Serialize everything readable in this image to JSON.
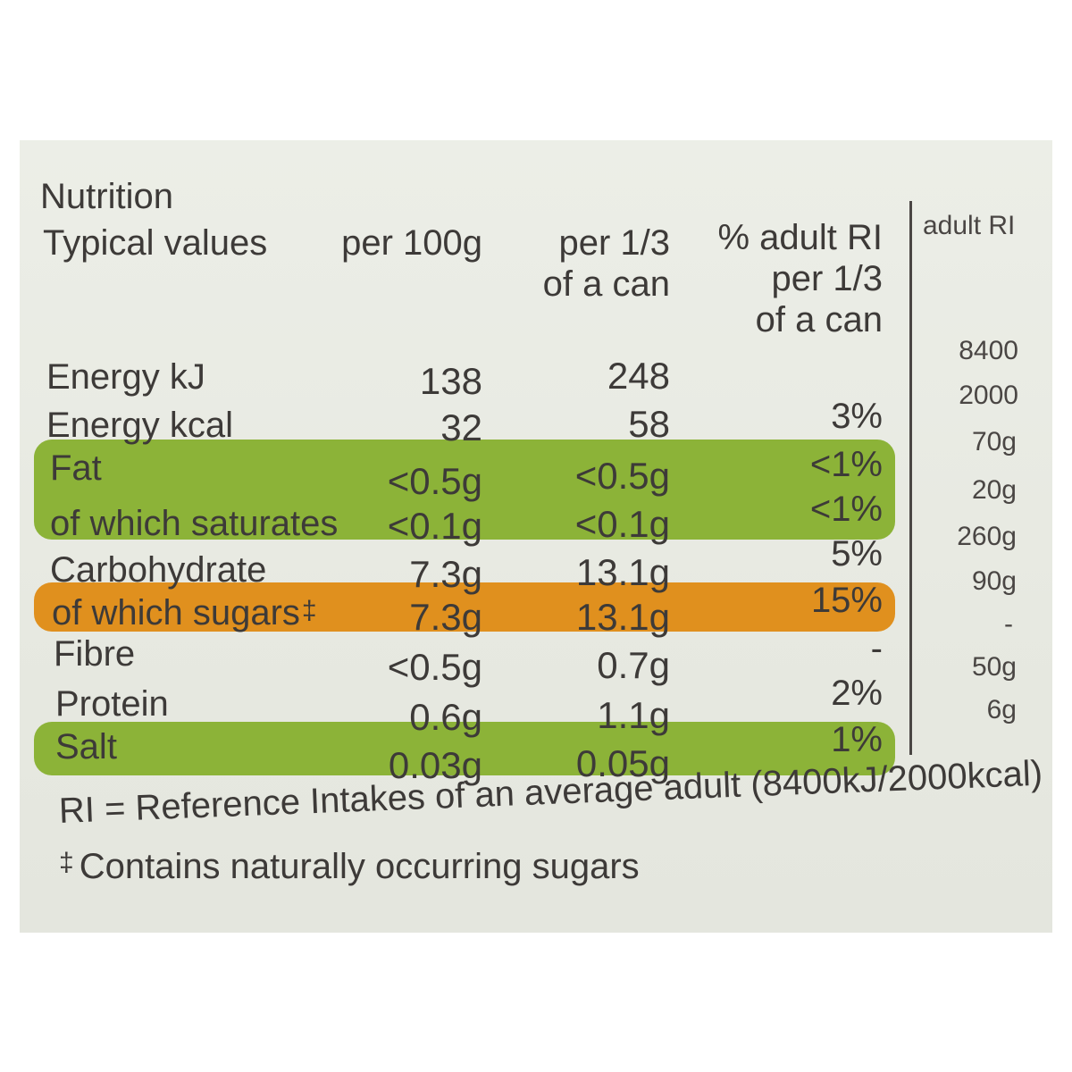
{
  "header": {
    "title": "Nutrition",
    "typical_values": "Typical values",
    "per_100g": "per 100g",
    "per_third_line1": "per 1/3",
    "per_third_line2": "of a can",
    "pct_ri_line1": "% adult RI",
    "pct_ri_line2": "per 1/3",
    "pct_ri_line3": "of a can",
    "adult_ri": "adult RI"
  },
  "rows": [
    {
      "name": "Energy kJ",
      "per_100g": "138",
      "per_third": "248",
      "pct_ri": "",
      "adult_ri": "8400",
      "highlight": "none"
    },
    {
      "name": "Energy kcal",
      "per_100g": "32",
      "per_third": "58",
      "pct_ri": "3%",
      "adult_ri": "2000",
      "highlight": "none"
    },
    {
      "name": "Fat",
      "per_100g": "<0.5g",
      "per_third": "<0.5g",
      "pct_ri": "<1%",
      "adult_ri": "70g",
      "highlight": "green"
    },
    {
      "name": "of which saturates",
      "per_100g": "<0.1g",
      "per_third": "<0.1g",
      "pct_ri": "<1%",
      "adult_ri": "20g",
      "highlight": "green"
    },
    {
      "name": "Carbohydrate",
      "per_100g": "7.3g",
      "per_third": "13.1g",
      "pct_ri": "5%",
      "adult_ri": "260g",
      "highlight": "none"
    },
    {
      "name": "of which sugars",
      "symbol": "‡",
      "per_100g": "7.3g",
      "per_third": "13.1g",
      "pct_ri": "15%",
      "adult_ri": "90g",
      "highlight": "orange"
    },
    {
      "name": "Fibre",
      "per_100g": "<0.5g",
      "per_third": "0.7g",
      "pct_ri": "-",
      "adult_ri": "-",
      "highlight": "none"
    },
    {
      "name": "Protein",
      "per_100g": "0.6g",
      "per_third": "1.1g",
      "pct_ri": "2%",
      "adult_ri": "50g",
      "highlight": "none"
    },
    {
      "name": "Salt",
      "per_100g": "0.03g",
      "per_third": "0.05g",
      "pct_ri": "1%",
      "adult_ri": "6g",
      "highlight": "green"
    }
  ],
  "footer": {
    "ri_note": "RI = Reference Intakes of an average adult (8400kJ/2000kcal)",
    "sugars_note_symbol": "‡",
    "sugars_note": "Contains naturally occurring sugars"
  },
  "colors": {
    "label_bg": "#e9ebe4",
    "green_band": "#8cb338",
    "orange_band": "#e0901e",
    "text": "#3d3a38"
  }
}
